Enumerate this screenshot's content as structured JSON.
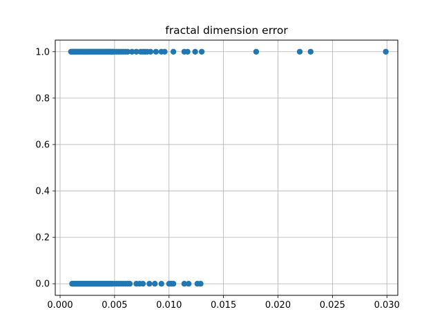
{
  "chart_data": {
    "type": "scatter",
    "title": "fractal dimension error",
    "xlabel": "",
    "ylabel": "",
    "xlim": [
      -0.000445,
      0.031
    ],
    "ylim": [
      -0.05,
      1.05
    ],
    "grid": true,
    "x_ticks": [
      "0.000",
      "0.005",
      "0.010",
      "0.015",
      "0.020",
      "0.025",
      "0.030"
    ],
    "y_ticks": [
      "0.0",
      "0.2",
      "0.4",
      "0.6",
      "0.8",
      "1.0"
    ],
    "point_color": "#1f77b4",
    "grid_color": "#b0b0b0",
    "series": [
      {
        "values_y1": [
          [
            0.001,
            1
          ],
          [
            0.0011,
            1
          ],
          [
            0.0012,
            1
          ],
          [
            0.0013,
            1
          ],
          [
            0.0014,
            1
          ],
          [
            0.0015,
            1
          ],
          [
            0.0016,
            1
          ],
          [
            0.0017,
            1
          ],
          [
            0.0018,
            1
          ],
          [
            0.0019,
            1
          ],
          [
            0.002,
            1
          ],
          [
            0.0021,
            1
          ],
          [
            0.0022,
            1
          ],
          [
            0.0023,
            1
          ],
          [
            0.0024,
            1
          ],
          [
            0.0025,
            1
          ],
          [
            0.0026,
            1
          ],
          [
            0.0027,
            1
          ],
          [
            0.0028,
            1
          ],
          [
            0.0029,
            1
          ],
          [
            0.003,
            1
          ],
          [
            0.0031,
            1
          ],
          [
            0.0032,
            1
          ],
          [
            0.0033,
            1
          ],
          [
            0.0034,
            1
          ],
          [
            0.0035,
            1
          ],
          [
            0.0036,
            1
          ],
          [
            0.0037,
            1
          ],
          [
            0.0038,
            1
          ],
          [
            0.0039,
            1
          ],
          [
            0.004,
            1
          ],
          [
            0.0041,
            1
          ],
          [
            0.0042,
            1
          ],
          [
            0.0043,
            1
          ],
          [
            0.0044,
            1
          ],
          [
            0.0045,
            1
          ],
          [
            0.0046,
            1
          ],
          [
            0.0047,
            1
          ],
          [
            0.0048,
            1
          ],
          [
            0.0049,
            1
          ],
          [
            0.005,
            1
          ],
          [
            0.0052,
            1
          ],
          [
            0.0054,
            1
          ],
          [
            0.0056,
            1
          ],
          [
            0.0058,
            1
          ],
          [
            0.006,
            1
          ],
          [
            0.0062,
            1
          ],
          [
            0.0066,
            1
          ],
          [
            0.007,
            1
          ],
          [
            0.0074,
            1
          ],
          [
            0.0076,
            1
          ],
          [
            0.0078,
            1
          ],
          [
            0.008,
            1
          ],
          [
            0.0083,
            1
          ],
          [
            0.0088,
            1
          ],
          [
            0.0093,
            1
          ],
          [
            0.0096,
            1
          ],
          [
            0.0104,
            1
          ],
          [
            0.0114,
            1
          ],
          [
            0.0117,
            1
          ],
          [
            0.0124,
            1
          ],
          [
            0.013,
            1
          ],
          [
            0.018,
            1
          ],
          [
            0.022,
            1
          ],
          [
            0.023,
            1
          ],
          [
            0.0299,
            1
          ]
        ],
        "values_y0": [
          [
            0.0011,
            0
          ],
          [
            0.0012,
            0
          ],
          [
            0.0013,
            0
          ],
          [
            0.0014,
            0
          ],
          [
            0.0015,
            0
          ],
          [
            0.0016,
            0
          ],
          [
            0.0017,
            0
          ],
          [
            0.0018,
            0
          ],
          [
            0.0019,
            0
          ],
          [
            0.002,
            0
          ],
          [
            0.0021,
            0
          ],
          [
            0.0022,
            0
          ],
          [
            0.0023,
            0
          ],
          [
            0.0024,
            0
          ],
          [
            0.0025,
            0
          ],
          [
            0.0026,
            0
          ],
          [
            0.0027,
            0
          ],
          [
            0.0028,
            0
          ],
          [
            0.0029,
            0
          ],
          [
            0.003,
            0
          ],
          [
            0.0031,
            0
          ],
          [
            0.0032,
            0
          ],
          [
            0.0033,
            0
          ],
          [
            0.0034,
            0
          ],
          [
            0.0035,
            0
          ],
          [
            0.0036,
            0
          ],
          [
            0.0037,
            0
          ],
          [
            0.0038,
            0
          ],
          [
            0.0039,
            0
          ],
          [
            0.004,
            0
          ],
          [
            0.0041,
            0
          ],
          [
            0.0042,
            0
          ],
          [
            0.0043,
            0
          ],
          [
            0.0044,
            0
          ],
          [
            0.0045,
            0
          ],
          [
            0.0046,
            0
          ],
          [
            0.0047,
            0
          ],
          [
            0.0048,
            0
          ],
          [
            0.005,
            0
          ],
          [
            0.0052,
            0
          ],
          [
            0.0054,
            0
          ],
          [
            0.0056,
            0
          ],
          [
            0.0058,
            0
          ],
          [
            0.006,
            0
          ],
          [
            0.0062,
            0
          ],
          [
            0.0064,
            0
          ],
          [
            0.007,
            0
          ],
          [
            0.0073,
            0
          ],
          [
            0.0076,
            0
          ],
          [
            0.0082,
            0
          ],
          [
            0.0087,
            0
          ],
          [
            0.0093,
            0
          ],
          [
            0.01,
            0
          ],
          [
            0.0102,
            0
          ],
          [
            0.0104,
            0
          ],
          [
            0.0114,
            0
          ],
          [
            0.0118,
            0
          ],
          [
            0.0126,
            0
          ],
          [
            0.0129,
            0
          ]
        ]
      }
    ]
  }
}
